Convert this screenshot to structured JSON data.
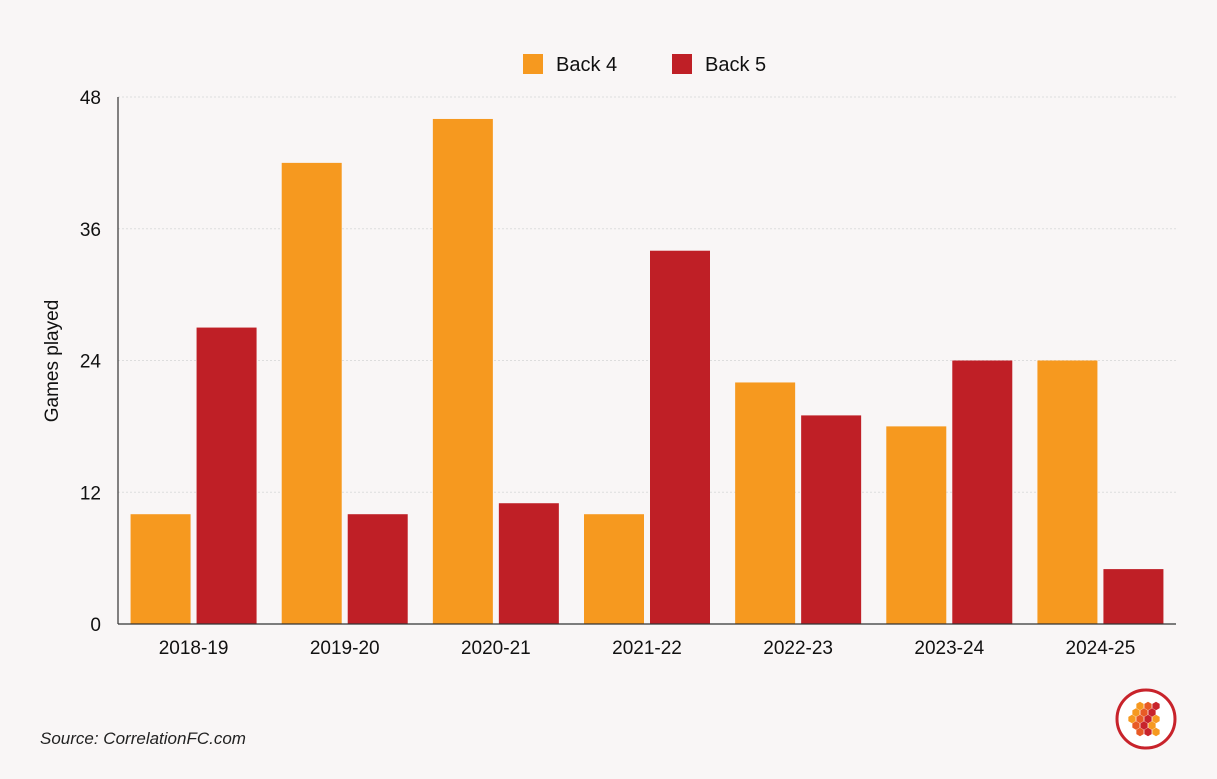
{
  "chart_data": {
    "type": "bar",
    "categories": [
      "2018-19",
      "2019-20",
      "2020-21",
      "2021-22",
      "2022-23",
      "2023-24",
      "2024-25"
    ],
    "series": [
      {
        "name": "Back 4",
        "values": [
          10,
          42,
          46,
          10,
          22,
          18,
          24
        ],
        "color": "#f6991f"
      },
      {
        "name": "Back 5",
        "values": [
          27,
          10,
          11,
          34,
          19,
          24,
          5
        ],
        "color": "#bf1f26"
      }
    ],
    "ylabel": "Games played",
    "xlabel": "",
    "ylim": [
      0,
      48
    ],
    "yticks": [
      0,
      12,
      24,
      36,
      48
    ],
    "grid": true,
    "legend": "top-center"
  },
  "footer": {
    "source": "Source: CorrelationFC.com"
  },
  "logo": {
    "icon": "hexagon-cluster-icon",
    "ring_color": "#c8232b",
    "fill_colors": [
      "#f6991f",
      "#e85a25",
      "#c8232b"
    ]
  }
}
